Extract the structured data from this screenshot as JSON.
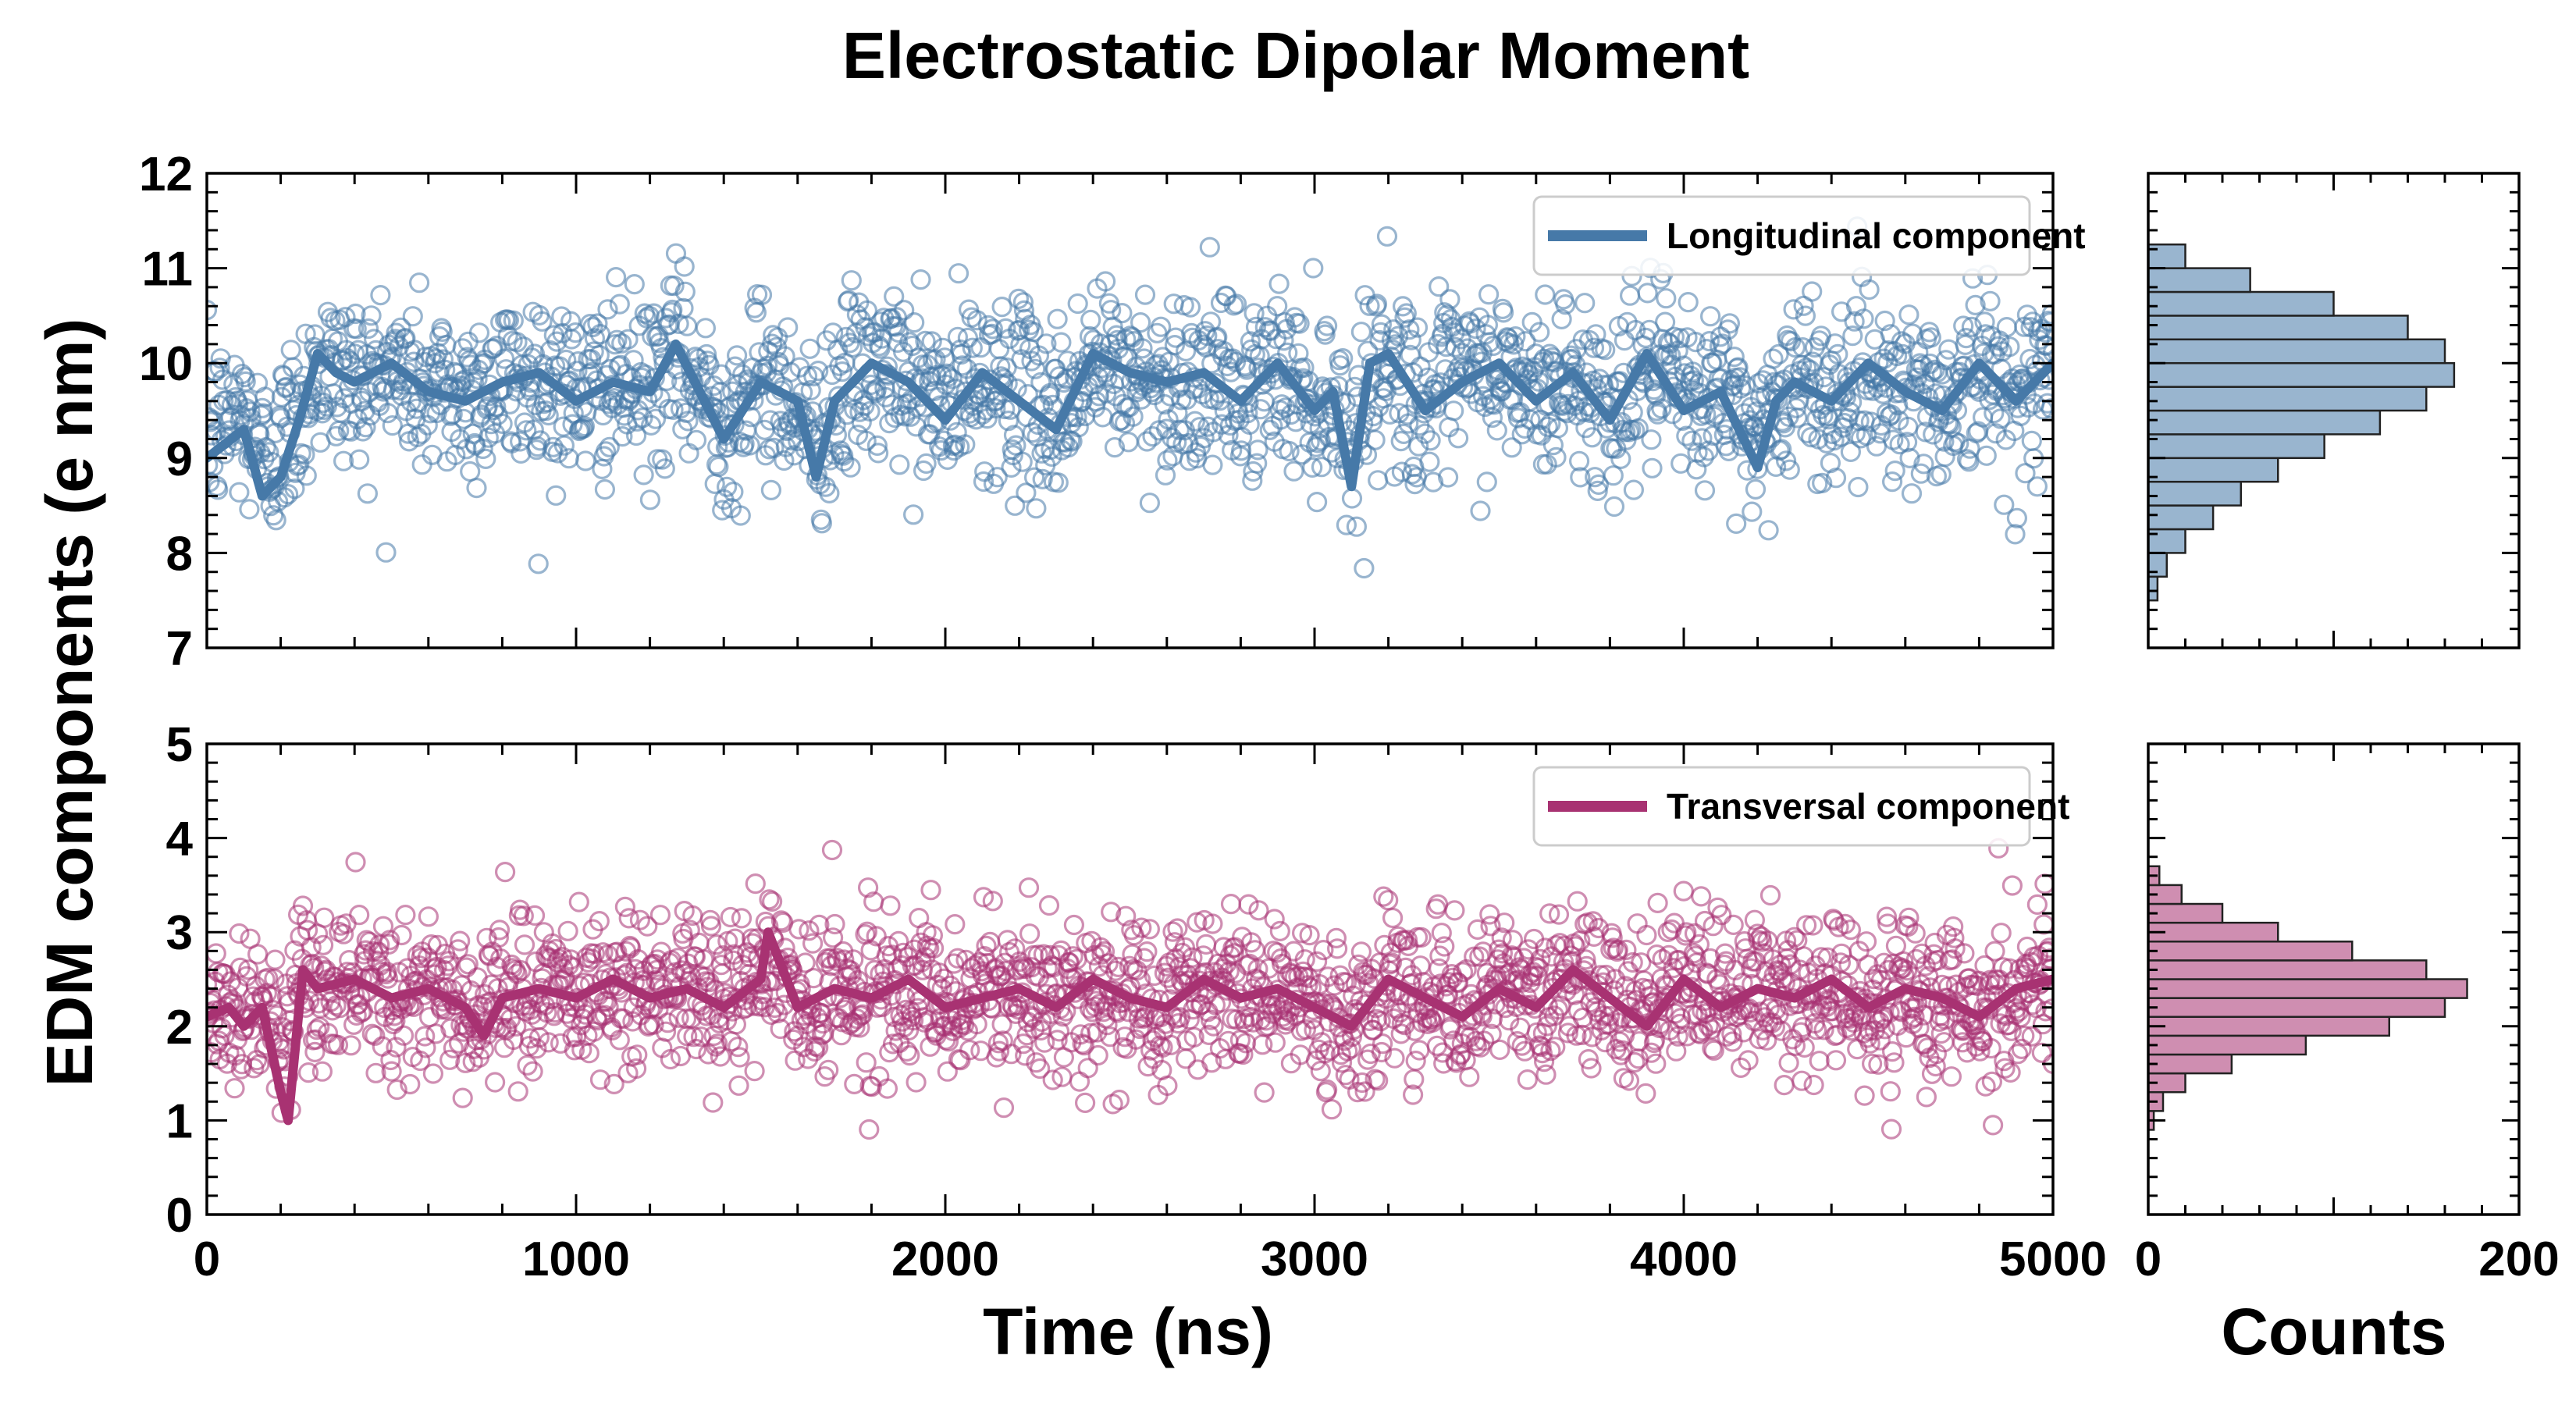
{
  "title": "Electrostatic Dipolar Moment",
  "ylabel": "EDM components (e nm)",
  "xlabel": "Time (ns)",
  "hist_xlabel": "Counts",
  "chart_data": [
    {
      "type": "scatter",
      "name": "Longitudinal component",
      "color": "#4679a8",
      "xlim": [
        0,
        5000
      ],
      "ylim": [
        7,
        12
      ],
      "xticks": [
        0,
        1000,
        2000,
        3000,
        4000,
        5000
      ],
      "yticks": [
        7,
        8,
        9,
        10,
        11,
        12
      ],
      "x_tick_labels_visible": false,
      "legend": "top-right",
      "point_count": 2000,
      "running_mean": {
        "x": [
          0,
          100,
          150,
          200,
          250,
          300,
          350,
          400,
          500,
          600,
          700,
          800,
          900,
          1000,
          1100,
          1200,
          1270,
          1400,
          1500,
          1600,
          1650,
          1700,
          1800,
          1900,
          2000,
          2100,
          2200,
          2300,
          2400,
          2500,
          2600,
          2700,
          2800,
          2900,
          3000,
          3050,
          3100,
          3150,
          3200,
          3300,
          3400,
          3500,
          3600,
          3700,
          3800,
          3900,
          4000,
          4100,
          4200,
          4250,
          4300,
          4400,
          4500,
          4600,
          4700,
          4800,
          4900,
          5000
        ],
        "y": [
          9.0,
          9.3,
          8.6,
          8.8,
          9.4,
          10.1,
          9.9,
          9.8,
          10.0,
          9.7,
          9.6,
          9.8,
          9.9,
          9.6,
          9.8,
          9.7,
          10.2,
          9.2,
          9.8,
          9.6,
          8.8,
          9.6,
          10.0,
          9.8,
          9.4,
          9.9,
          9.6,
          9.3,
          10.1,
          9.9,
          9.8,
          9.9,
          9.6,
          10.0,
          9.5,
          9.7,
          8.7,
          10.0,
          10.1,
          9.5,
          9.8,
          10.0,
          9.6,
          9.9,
          9.4,
          10.1,
          9.5,
          9.7,
          8.9,
          9.6,
          9.8,
          9.6,
          10.0,
          9.7,
          9.5,
          10.0,
          9.6,
          10.0
        ]
      },
      "scatter_mean": 9.75,
      "scatter_std": 0.55,
      "histogram": {
        "orientation": "horizontal",
        "xlim": [
          0,
          200
        ],
        "xticks": [
          0,
          200
        ],
        "bin_edges": [
          7.5,
          7.75,
          8.0,
          8.25,
          8.5,
          8.75,
          9.0,
          9.25,
          9.5,
          9.75,
          10.0,
          10.25,
          10.5,
          10.75,
          11.0,
          11.25
        ],
        "counts": [
          5,
          10,
          20,
          35,
          50,
          70,
          95,
          125,
          150,
          165,
          160,
          140,
          100,
          55,
          20
        ]
      }
    },
    {
      "type": "scatter",
      "name": "Transversal component",
      "color": "#a83272",
      "xlim": [
        0,
        5000
      ],
      "ylim": [
        0,
        5
      ],
      "xticks": [
        0,
        1000,
        2000,
        3000,
        4000,
        5000
      ],
      "yticks": [
        0,
        1,
        2,
        3,
        4,
        5
      ],
      "legend": "top-right",
      "point_count": 2000,
      "running_mean": {
        "x": [
          0,
          60,
          100,
          150,
          200,
          220,
          260,
          300,
          400,
          500,
          600,
          700,
          750,
          800,
          900,
          1000,
          1100,
          1200,
          1300,
          1400,
          1500,
          1520,
          1600,
          1700,
          1800,
          1900,
          2000,
          2100,
          2200,
          2300,
          2400,
          2500,
          2600,
          2700,
          2800,
          2900,
          3000,
          3100,
          3200,
          3300,
          3400,
          3500,
          3600,
          3700,
          3800,
          3900,
          4000,
          4100,
          4200,
          4300,
          4400,
          4500,
          4600,
          4700,
          4800,
          4900,
          5000
        ],
        "y": [
          2.1,
          2.2,
          2.0,
          2.2,
          1.3,
          1.0,
          2.6,
          2.4,
          2.5,
          2.3,
          2.4,
          2.2,
          1.9,
          2.3,
          2.4,
          2.3,
          2.5,
          2.3,
          2.4,
          2.2,
          2.5,
          3.0,
          2.2,
          2.4,
          2.3,
          2.5,
          2.2,
          2.3,
          2.4,
          2.2,
          2.5,
          2.3,
          2.2,
          2.5,
          2.3,
          2.4,
          2.2,
          2.0,
          2.5,
          2.3,
          2.1,
          2.4,
          2.2,
          2.6,
          2.3,
          2.0,
          2.5,
          2.2,
          2.4,
          2.3,
          2.5,
          2.2,
          2.4,
          2.3,
          2.1,
          2.4,
          2.5
        ]
      },
      "scatter_mean": 2.35,
      "scatter_std": 0.5,
      "histogram": {
        "orientation": "horizontal",
        "xlim": [
          0,
          200
        ],
        "xticks": [
          0,
          200
        ],
        "bin_edges": [
          0.9,
          1.1,
          1.3,
          1.5,
          1.7,
          1.9,
          2.1,
          2.3,
          2.5,
          2.7,
          2.9,
          3.1,
          3.3,
          3.5,
          3.7
        ],
        "counts": [
          3,
          8,
          20,
          45,
          85,
          130,
          160,
          172,
          150,
          110,
          70,
          40,
          18,
          6
        ]
      }
    }
  ]
}
